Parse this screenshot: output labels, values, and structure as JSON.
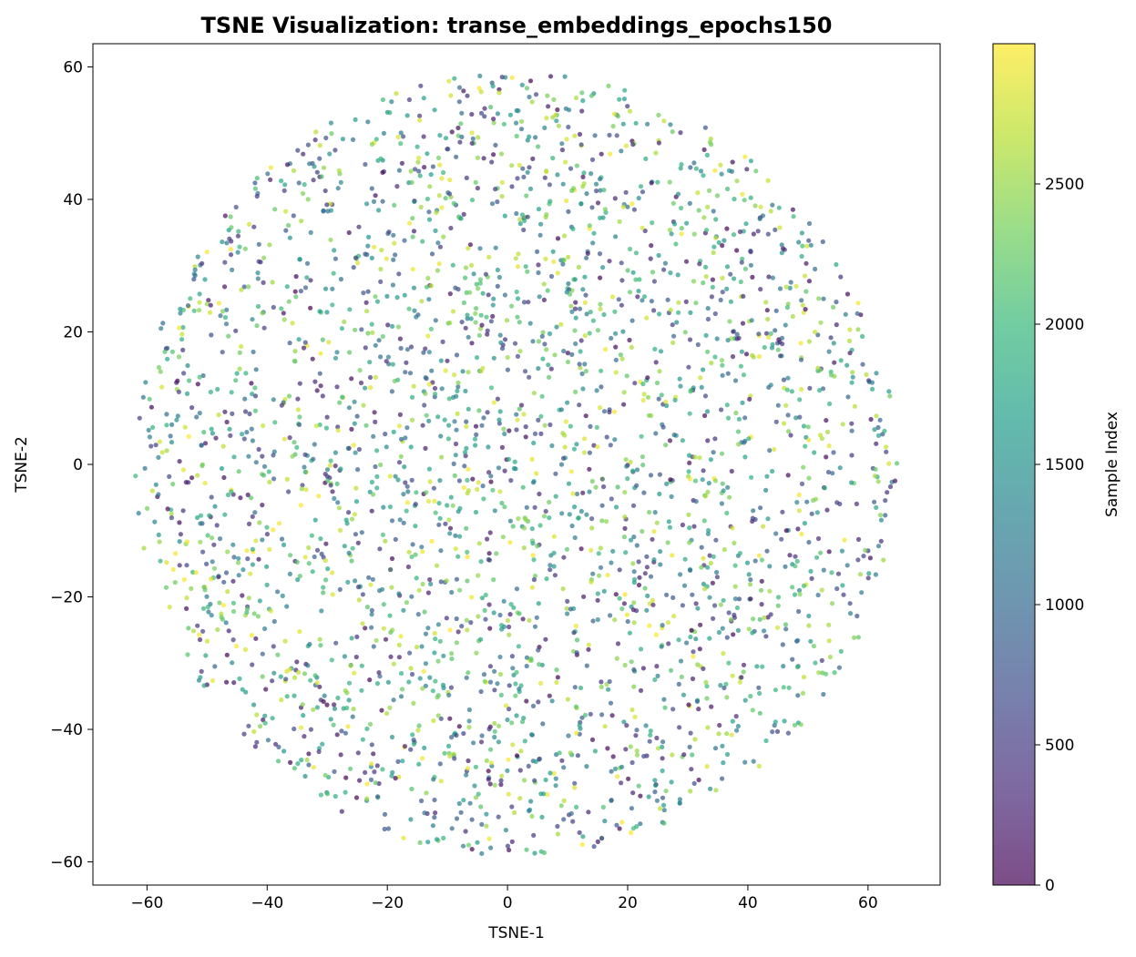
{
  "chart_data": {
    "type": "scatter",
    "title": "TSNE Visualization: transe_embeddings_epochs150",
    "xlabel": "TSNE-1",
    "ylabel": "TSNE-2",
    "xlim": [
      -69,
      72
    ],
    "ylim": [
      -63.5,
      63.5
    ],
    "xticks": [
      -60,
      -40,
      -20,
      0,
      20,
      40,
      60
    ],
    "yticks": [
      -60,
      -40,
      -20,
      0,
      20,
      40,
      60
    ],
    "xtick_labels": [
      "−60",
      "−40",
      "−20",
      "0",
      "20",
      "40",
      "60"
    ],
    "ytick_labels": [
      "−60",
      "−40",
      "−20",
      "0",
      "20",
      "40",
      "60"
    ],
    "grid": false,
    "colormap": "viridis",
    "alpha": 0.7,
    "n_points": 3000,
    "point_cloud": "approximately uniform disk of radius ~64 centered near (0, 0); colors randomly mixed across index range",
    "sample_points": [
      {
        "x": -62,
        "y": -4,
        "c": 1500
      },
      {
        "x": 65,
        "y": 6,
        "c": 2600
      },
      {
        "x": 5,
        "y": 57,
        "c": 2200
      },
      {
        "x": 5,
        "y": -57,
        "c": 1200
      },
      {
        "x": -60,
        "y": 12,
        "c": 1800
      },
      {
        "x": 60,
        "y": 10,
        "c": 2100
      },
      {
        "x": -45,
        "y": 43,
        "c": 700
      },
      {
        "x": 45,
        "y": 43,
        "c": 1400
      },
      {
        "x": -45,
        "y": -43,
        "c": 1600
      },
      {
        "x": 45,
        "y": -43,
        "c": 2300
      },
      {
        "x": 0,
        "y": 0,
        "c": 1000
      },
      {
        "x": 20,
        "y": 20,
        "c": 2800
      },
      {
        "x": -20,
        "y": 20,
        "c": 400
      },
      {
        "x": -20,
        "y": -20,
        "c": 2000
      },
      {
        "x": 20,
        "y": -20,
        "c": 1700
      }
    ],
    "colorbar": {
      "label": "Sample Index",
      "range": [
        0,
        3000
      ],
      "ticks": [
        0,
        500,
        1000,
        1500,
        2000,
        2500
      ],
      "tick_labels": [
        "0",
        "500",
        "1000",
        "1500",
        "2000",
        "2500"
      ]
    },
    "colors": {
      "viridis_stops": [
        "#440154",
        "#482878",
        "#3e4989",
        "#31688e",
        "#26828e",
        "#1f9e89",
        "#35b779",
        "#6ece58",
        "#b5de2b",
        "#fde725"
      ]
    }
  }
}
